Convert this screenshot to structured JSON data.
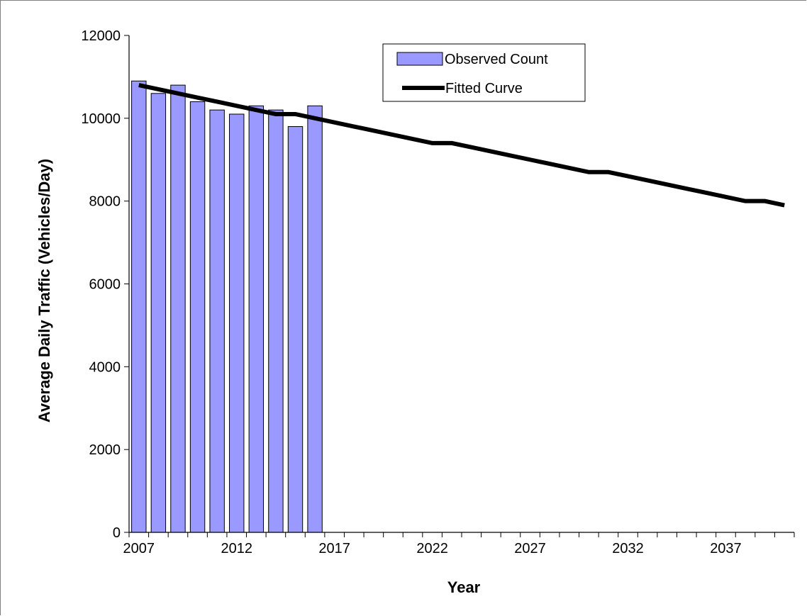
{
  "chart_data": {
    "type": "bar+line",
    "xlabel": "Year",
    "ylabel": "Average Daily Traffic (Vehicles/Day)",
    "ylim": [
      0,
      12000
    ],
    "yticks": [
      "0",
      "2000",
      "4000",
      "6000",
      "8000",
      "10000",
      "12000"
    ],
    "x_range": [
      2006.5,
      2040.5
    ],
    "xtick_labels": [
      "2007",
      "2012",
      "2017",
      "2022",
      "2027",
      "2032",
      "2037"
    ],
    "grid": false,
    "legend_position": "top-center",
    "legend": {
      "observed_label": "Observed Count",
      "fitted_label": "Fitted Curve"
    },
    "series": [
      {
        "name": "Observed Count",
        "type": "bar",
        "color": "#9999ff",
        "x": [
          2007,
          2008,
          2009,
          2010,
          2011,
          2012,
          2013,
          2014,
          2015,
          2016
        ],
        "values": [
          10900,
          10600,
          10800,
          10400,
          10200,
          10100,
          10300,
          10200,
          9800,
          10300
        ]
      },
      {
        "name": "Fitted Curve",
        "type": "line",
        "color": "#000000",
        "x": [
          2007,
          2008,
          2009,
          2010,
          2011,
          2012,
          2013,
          2014,
          2015,
          2016,
          2017,
          2018,
          2019,
          2020,
          2021,
          2022,
          2023,
          2024,
          2025,
          2026,
          2027,
          2028,
          2029,
          2030,
          2031,
          2032,
          2033,
          2034,
          2035,
          2036,
          2037,
          2038,
          2039,
          2040
        ],
        "values": [
          10800,
          10700,
          10600,
          10500,
          10400,
          10300,
          10200,
          10100,
          10100,
          10000,
          9900,
          9800,
          9700,
          9600,
          9500,
          9400,
          9400,
          9300,
          9200,
          9100,
          9000,
          8900,
          8800,
          8700,
          8700,
          8600,
          8500,
          8400,
          8300,
          8200,
          8100,
          8000,
          8000,
          7900
        ]
      }
    ]
  }
}
